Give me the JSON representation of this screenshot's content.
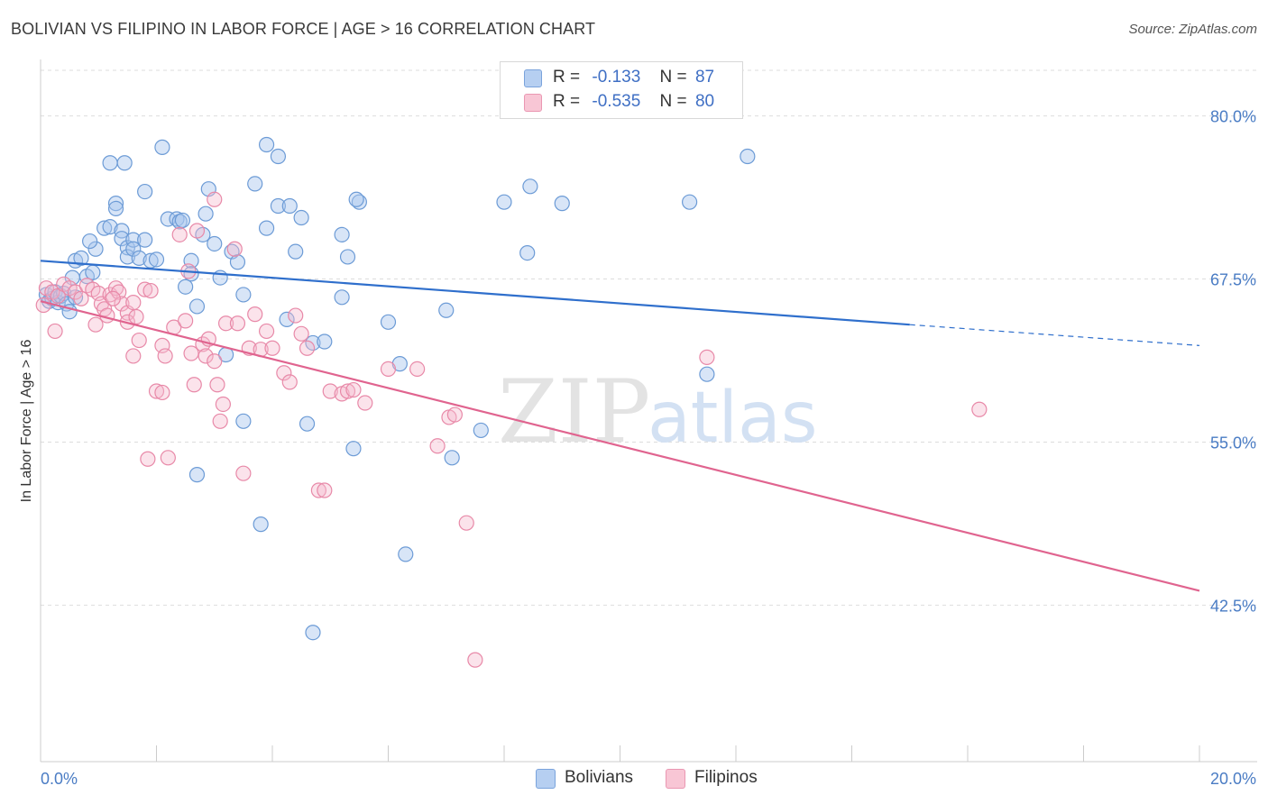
{
  "title": "BOLIVIAN VS FILIPINO IN LABOR FORCE | AGE > 16 CORRELATION CHART",
  "source": "Source: ZipAtlas.com",
  "watermark": {
    "zip": "ZIP",
    "atlas": "atlas"
  },
  "legend": {
    "rows": [
      {
        "r_label": "R =",
        "r_value": "-0.133",
        "n_label": "N =",
        "n_value": "87"
      },
      {
        "r_label": "R =",
        "r_value": "-0.535",
        "n_label": "N =",
        "n_value": "80"
      }
    ]
  },
  "bottom_legend": [
    "Bolivians",
    "Filipinos"
  ],
  "colors": {
    "blue_fill": "#a9c6ee",
    "blue_stroke": "#6c9bd6",
    "blue_line": "#2f6fcc",
    "pink_fill": "#f6b9cc",
    "pink_stroke": "#e889a8",
    "pink_line": "#e0648f",
    "grid": "#dddddd",
    "axis_text": "#4a7cc4"
  },
  "chart_data": {
    "type": "scatter",
    "title": "BOLIVIAN VS FILIPINO IN LABOR FORCE | AGE > 16 CORRELATION CHART",
    "xlabel": "",
    "ylabel": "In Labor Force | Age > 16",
    "xlim": [
      0,
      20
    ],
    "ylim": [
      30.5,
      83.5
    ],
    "y_ticks": [
      42.5,
      55.0,
      67.5,
      80.0
    ],
    "y_tick_labels": [
      "42.5%",
      "55.0%",
      "67.5%",
      "80.0%"
    ],
    "x_tick_labels": [
      "0.0%",
      "20.0%"
    ],
    "series": [
      {
        "name": "Bolivians",
        "r": -0.133,
        "n": 87,
        "trend": {
          "x0": 0.0,
          "y0": 68.9,
          "x1": 15.0,
          "y1": 64.0,
          "dash_to_x": 20.0,
          "dash_to_y": 62.4
        },
        "points": [
          [
            0.1,
            66.3
          ],
          [
            0.15,
            65.8
          ],
          [
            0.2,
            66.0
          ],
          [
            0.25,
            66.5
          ],
          [
            0.3,
            65.7
          ],
          [
            0.35,
            66.2
          ],
          [
            0.4,
            66.4
          ],
          [
            0.45,
            65.6
          ],
          [
            0.5,
            65.0
          ],
          [
            0.55,
            67.6
          ],
          [
            0.6,
            66.1
          ],
          [
            0.6,
            68.9
          ],
          [
            0.7,
            69.1
          ],
          [
            0.8,
            67.7
          ],
          [
            0.9,
            68.0
          ],
          [
            0.95,
            69.8
          ],
          [
            0.85,
            70.4
          ],
          [
            1.1,
            71.4
          ],
          [
            1.2,
            71.5
          ],
          [
            1.3,
            73.3
          ],
          [
            1.3,
            72.9
          ],
          [
            1.4,
            71.2
          ],
          [
            1.4,
            70.6
          ],
          [
            1.5,
            69.9
          ],
          [
            1.5,
            69.2
          ],
          [
            1.6,
            70.5
          ],
          [
            1.6,
            69.8
          ],
          [
            1.7,
            69.1
          ],
          [
            1.8,
            70.5
          ],
          [
            1.9,
            68.9
          ],
          [
            2.0,
            69.0
          ],
          [
            1.2,
            76.4
          ],
          [
            1.45,
            76.4
          ],
          [
            1.8,
            74.2
          ],
          [
            2.1,
            77.6
          ],
          [
            2.2,
            72.1
          ],
          [
            2.35,
            72.1
          ],
          [
            2.4,
            71.9
          ],
          [
            2.45,
            72.0
          ],
          [
            2.5,
            66.9
          ],
          [
            2.6,
            68.9
          ],
          [
            2.6,
            67.9
          ],
          [
            2.7,
            65.4
          ],
          [
            2.8,
            70.9
          ],
          [
            2.9,
            74.4
          ],
          [
            2.85,
            72.5
          ],
          [
            3.0,
            70.2
          ],
          [
            3.1,
            67.6
          ],
          [
            3.2,
            61.7
          ],
          [
            3.3,
            69.6
          ],
          [
            3.4,
            68.8
          ],
          [
            3.5,
            66.3
          ],
          [
            3.7,
            74.8
          ],
          [
            3.5,
            56.6
          ],
          [
            3.9,
            71.4
          ],
          [
            4.1,
            73.1
          ],
          [
            3.9,
            77.8
          ],
          [
            4.1,
            76.9
          ],
          [
            4.3,
            73.1
          ],
          [
            4.5,
            72.2
          ],
          [
            4.4,
            69.6
          ],
          [
            4.25,
            64.4
          ],
          [
            4.6,
            56.4
          ],
          [
            4.7,
            62.6
          ],
          [
            4.9,
            62.7
          ],
          [
            5.2,
            70.9
          ],
          [
            5.2,
            66.1
          ],
          [
            5.3,
            69.2
          ],
          [
            5.4,
            54.5
          ],
          [
            5.5,
            73.4
          ],
          [
            6.0,
            64.2
          ],
          [
            6.2,
            61.0
          ],
          [
            6.3,
            46.4
          ],
          [
            7.0,
            65.1
          ],
          [
            7.1,
            53.8
          ],
          [
            7.6,
            55.9
          ],
          [
            8.0,
            73.4
          ],
          [
            8.45,
            74.6
          ],
          [
            8.4,
            69.5
          ],
          [
            9.0,
            73.3
          ],
          [
            5.45,
            73.6
          ],
          [
            3.8,
            48.7
          ],
          [
            4.7,
            40.4
          ],
          [
            2.7,
            52.5
          ],
          [
            11.2,
            73.4
          ],
          [
            11.5,
            60.2
          ],
          [
            12.2,
            76.9
          ]
        ]
      },
      {
        "name": "Filipinos",
        "r": -0.535,
        "n": 80,
        "trend": {
          "x0": 0.0,
          "y0": 65.8,
          "x1": 20.0,
          "y1": 43.6
        },
        "points": [
          [
            0.05,
            65.5
          ],
          [
            0.1,
            66.8
          ],
          [
            0.2,
            66.5
          ],
          [
            0.3,
            66.2
          ],
          [
            0.4,
            67.1
          ],
          [
            0.5,
            66.8
          ],
          [
            0.6,
            66.5
          ],
          [
            0.7,
            66.0
          ],
          [
            0.8,
            67.0
          ],
          [
            0.9,
            66.7
          ],
          [
            1.0,
            66.4
          ],
          [
            1.05,
            65.6
          ],
          [
            1.1,
            65.2
          ],
          [
            1.15,
            64.7
          ],
          [
            1.2,
            66.3
          ],
          [
            1.3,
            66.8
          ],
          [
            1.35,
            66.5
          ],
          [
            1.4,
            65.6
          ],
          [
            1.5,
            64.9
          ],
          [
            1.5,
            64.2
          ],
          [
            1.6,
            65.7
          ],
          [
            1.65,
            64.6
          ],
          [
            1.7,
            62.8
          ],
          [
            1.8,
            66.7
          ],
          [
            1.9,
            66.6
          ],
          [
            1.85,
            53.7
          ],
          [
            2.0,
            58.9
          ],
          [
            2.1,
            58.8
          ],
          [
            2.1,
            62.4
          ],
          [
            2.15,
            61.6
          ],
          [
            2.2,
            53.8
          ],
          [
            2.3,
            63.8
          ],
          [
            2.4,
            70.9
          ],
          [
            2.5,
            64.3
          ],
          [
            2.6,
            61.8
          ],
          [
            2.65,
            59.4
          ],
          [
            2.7,
            71.2
          ],
          [
            2.8,
            62.5
          ],
          [
            2.85,
            61.6
          ],
          [
            2.9,
            62.9
          ],
          [
            3.0,
            73.6
          ],
          [
            3.0,
            61.2
          ],
          [
            3.05,
            59.4
          ],
          [
            3.1,
            56.6
          ],
          [
            3.15,
            57.9
          ],
          [
            3.2,
            64.1
          ],
          [
            3.35,
            69.8
          ],
          [
            3.4,
            64.1
          ],
          [
            3.5,
            52.6
          ],
          [
            3.6,
            62.2
          ],
          [
            3.7,
            64.8
          ],
          [
            3.8,
            62.1
          ],
          [
            3.9,
            63.5
          ],
          [
            4.0,
            62.2
          ],
          [
            4.2,
            60.3
          ],
          [
            4.3,
            59.6
          ],
          [
            4.4,
            64.7
          ],
          [
            4.5,
            63.3
          ],
          [
            4.6,
            62.2
          ],
          [
            4.8,
            51.3
          ],
          [
            4.9,
            51.3
          ],
          [
            5.0,
            58.9
          ],
          [
            5.2,
            58.7
          ],
          [
            5.3,
            58.9
          ],
          [
            5.4,
            59.0
          ],
          [
            5.6,
            58.0
          ],
          [
            6.0,
            60.6
          ],
          [
            6.5,
            60.6
          ],
          [
            6.85,
            54.7
          ],
          [
            7.05,
            56.9
          ],
          [
            7.15,
            57.1
          ],
          [
            7.35,
            48.8
          ],
          [
            7.5,
            38.3
          ],
          [
            11.5,
            61.5
          ],
          [
            16.2,
            57.5
          ],
          [
            0.25,
            63.5
          ],
          [
            1.25,
            66.0
          ],
          [
            0.95,
            64.0
          ],
          [
            2.55,
            68.1
          ],
          [
            1.6,
            61.6
          ]
        ]
      }
    ]
  }
}
